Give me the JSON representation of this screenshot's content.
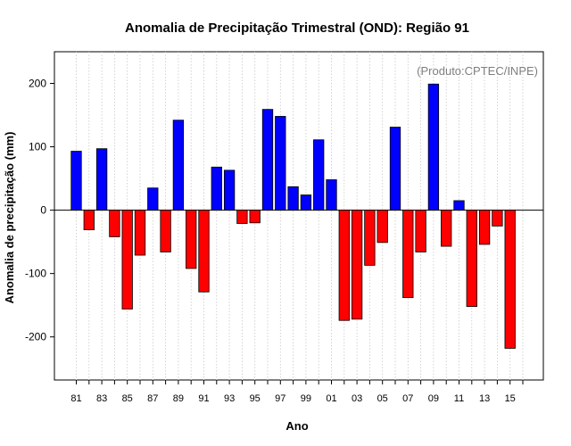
{
  "chart_data": {
    "type": "bar",
    "title": "Anomalia de Precipitação Trimestral (OND): Região 91",
    "xlabel": "Ano",
    "ylabel": "Anomalia de precipitação (mm)",
    "credit": "(Produto:CPTEC/INPE)",
    "ylim": [
      -268,
      250
    ],
    "yticks": [
      -200,
      -100,
      0,
      100,
      200
    ],
    "categories": [
      "81",
      "82",
      "83",
      "84",
      "85",
      "86",
      "87",
      "88",
      "89",
      "90",
      "91",
      "92",
      "93",
      "94",
      "95",
      "96",
      "97",
      "98",
      "99",
      "00",
      "01",
      "02",
      "03",
      "04",
      "05",
      "06",
      "07",
      "08",
      "09",
      "10",
      "11",
      "12",
      "13",
      "14",
      "15",
      "16"
    ],
    "tick_labels": [
      "81",
      "83",
      "85",
      "87",
      "89",
      "91",
      "93",
      "95",
      "97",
      "99",
      "01",
      "03",
      "05",
      "07",
      "09",
      "11",
      "13",
      "15"
    ],
    "values": [
      93,
      -31,
      97,
      -42,
      -156,
      -71,
      35,
      -66,
      142,
      -92,
      -129,
      68,
      63,
      -21,
      -20,
      159,
      148,
      37,
      24,
      111,
      48,
      -174,
      -172,
      -87,
      -51,
      131,
      -138,
      -66,
      199,
      -57,
      15,
      -152,
      -54,
      -25,
      -218,
      null
    ],
    "positive_color": "#0000ff",
    "negative_color": "#ff0000",
    "grid": true
  }
}
